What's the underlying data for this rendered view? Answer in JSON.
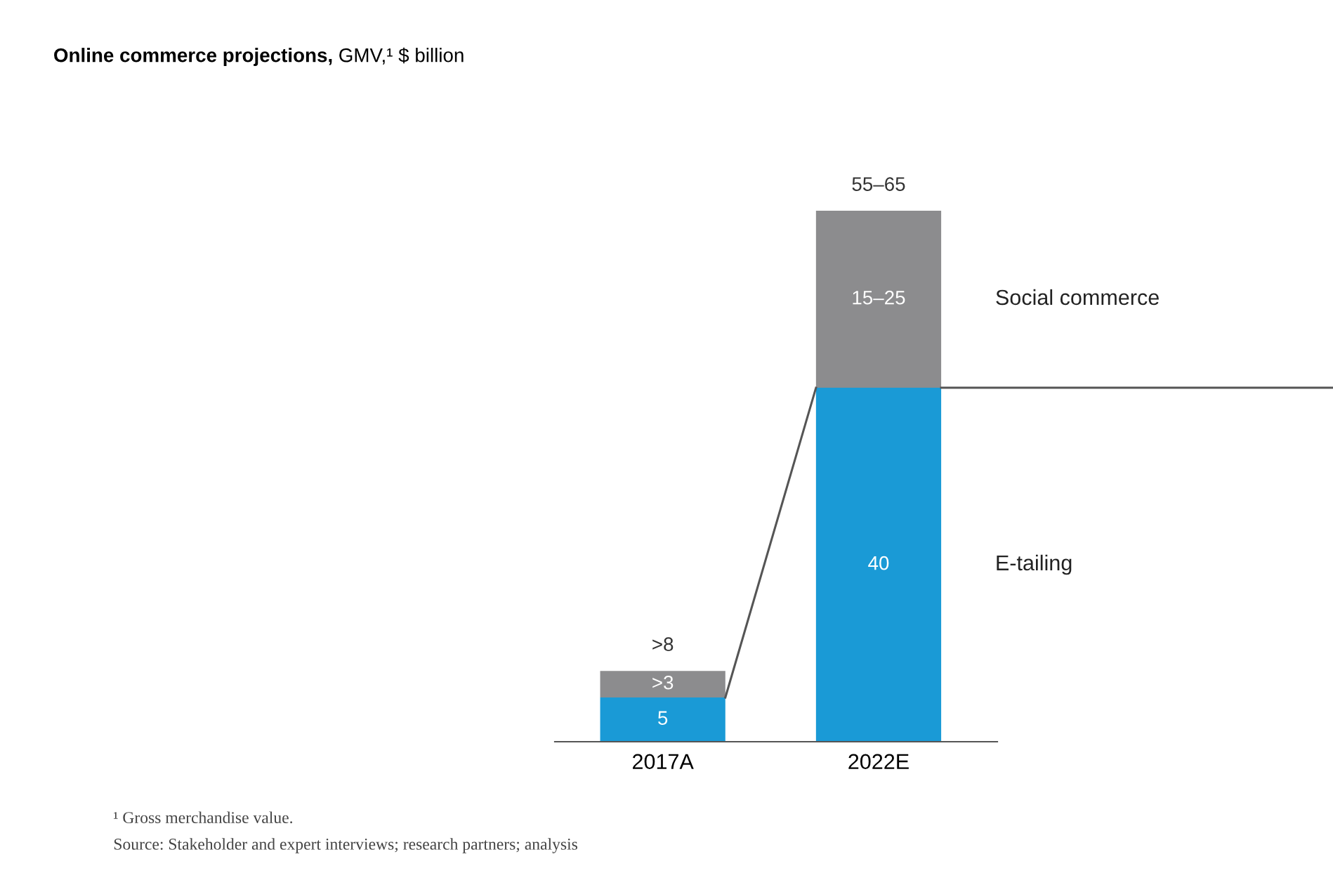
{
  "chart_data": {
    "type": "bar",
    "title": "Online commerce projections,",
    "subtitle": "GMV,¹ $ billion",
    "categories": [
      "2017A",
      "2022E"
    ],
    "stacked": true,
    "series": [
      {
        "name": "E-tailing",
        "color": "#1a9ad6",
        "values": [
          5,
          40
        ],
        "value_labels": [
          "5",
          "40"
        ]
      },
      {
        "name": "Social commerce",
        "color": "#8c8c8e",
        "values": [
          3,
          20
        ],
        "value_labels": [
          ">3",
          "15–25"
        ]
      }
    ],
    "totals": [
      ">8",
      "55–65"
    ],
    "ref_lines": [
      {
        "axis": "y",
        "value": 40,
        "color": "#555555"
      }
    ],
    "legend": "right",
    "annotations": [
      "¹ Gross merchandise value.",
      "Source: Stakeholder and expert interviews; research partners; analysis"
    ]
  }
}
